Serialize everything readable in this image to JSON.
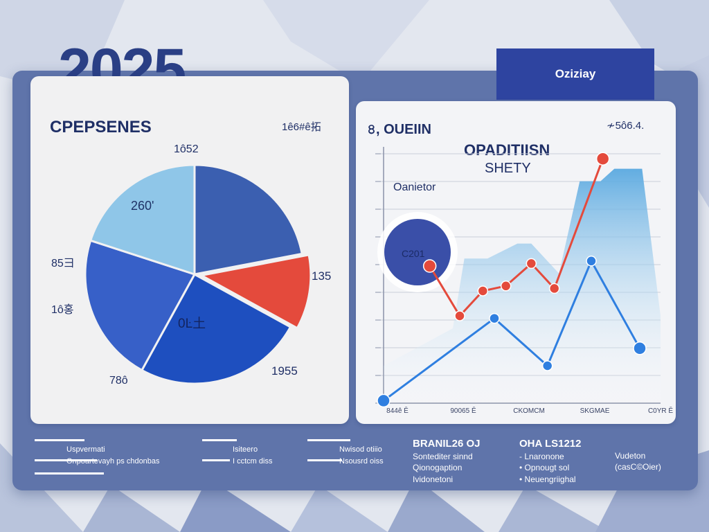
{
  "header": {
    "year": "2025",
    "tag_label": "Oziziay"
  },
  "pie_card": {
    "title": "CPEPSENES",
    "top_right": "1ê6#ê拓",
    "labels": {
      "top": "1ô52",
      "left_upper": "85彐",
      "left_lower": "1ô홍",
      "right": "135",
      "bottom_left": "78ô",
      "bottom_right": "1955",
      "slice_light": "260'",
      "slice_center": "0Ŀ土"
    }
  },
  "line_card": {
    "title": "৪, OUEIIN",
    "top_right": "≁5ô6.4.",
    "subtitle_1": "OPADITIISN",
    "subtitle_2": "SHETY",
    "caption": "Oanietor",
    "bubble_label": "C201",
    "x_labels": [
      "844ê Ē",
      "90065 Ē",
      "CKOMCM",
      "SKGMAE",
      "C0YR Ē"
    ]
  },
  "footer": {
    "legend_1": {
      "line_1": "Uspvermati",
      "line_2": "Onpoartevayh ps chdonbas"
    },
    "legend_2": {
      "line_1": "Isiteero",
      "line_2": "I cctcm diss"
    },
    "legend_3": {
      "line_1": "Nwisod otiiio",
      "line_2": "Nsousrd oiss"
    },
    "col_1": {
      "title": "BRANIL26 OJ",
      "lines": [
        "Sontediter sinnd",
        "Qionogaption",
        "Ividonetoni"
      ]
    },
    "col_2": {
      "title": "OHA LS1212",
      "lines": [
        "- Lnaronone",
        "• Opnougt sol",
        "• Neuengriighal"
      ]
    },
    "col_3": {
      "lines": [
        "Vudeton",
        "(casC©Oier)"
      ]
    }
  },
  "colors": {
    "navy": "#2a3f85",
    "pie_blue_dark": "#3b5fb0",
    "pie_blue": "#3760c8",
    "pie_blue_deep": "#1e4fbf",
    "pie_light": "#8fc6e8",
    "accent_red": "#e44a3c",
    "line_blue": "#2f7fe0",
    "area_blue": "#5aa9e0",
    "panel": "#5f74aa"
  },
  "chart_data": [
    {
      "type": "pie",
      "title": "CPEPSENES",
      "slices": [
        {
          "label": "1ô52",
          "value": 22,
          "color": "#3b5fb0"
        },
        {
          "label": "135",
          "value": 11,
          "color": "#e44a3c"
        },
        {
          "label": "0Ŀ土",
          "value": 25,
          "color": "#1e4fbf"
        },
        {
          "label": "85彐",
          "value": 22,
          "color": "#3760c8"
        },
        {
          "label": "260'",
          "value": 20,
          "color": "#8fc6e8"
        }
      ]
    },
    {
      "type": "line",
      "title": "৪, OUEIIN",
      "x": [
        0,
        1,
        2,
        3,
        4,
        5,
        6,
        7,
        8,
        9,
        10
      ],
      "x_tick_labels": [
        "844ê Ē",
        "90065 Ē",
        "CKOMCM",
        "SKGMAE",
        "C0YR Ē"
      ],
      "ylim": [
        0,
        10
      ],
      "series": [
        {
          "color": "#e44a3c",
          "points": [
            [
              2,
              5.5
            ],
            [
              3.3,
              3.5
            ],
            [
              4.3,
              4.5
            ],
            [
              5.3,
              4.7
            ],
            [
              6.4,
              5.6
            ],
            [
              7.4,
              4.6
            ],
            [
              9.5,
              9.8
            ]
          ]
        },
        {
          "color": "#2f7fe0",
          "points": [
            [
              0,
              0.1
            ],
            [
              4.8,
              3.4
            ],
            [
              7.1,
              1.5
            ],
            [
              9.0,
              5.7
            ],
            [
              11.1,
              2.2
            ]
          ]
        }
      ],
      "area": {
        "color": "#5aa9e0",
        "points": [
          [
            0,
            1.5
          ],
          [
            3,
            3
          ],
          [
            3.5,
            5.8
          ],
          [
            4.5,
            5.8
          ],
          [
            5.8,
            6.4
          ],
          [
            6.4,
            6.4
          ],
          [
            7.6,
            5.2
          ],
          [
            8.5,
            8.9
          ],
          [
            9.4,
            8.9
          ],
          [
            10.0,
            9.4
          ],
          [
            11.2,
            9.4
          ],
          [
            12,
            3.5
          ]
        ]
      },
      "grid": true
    }
  ]
}
